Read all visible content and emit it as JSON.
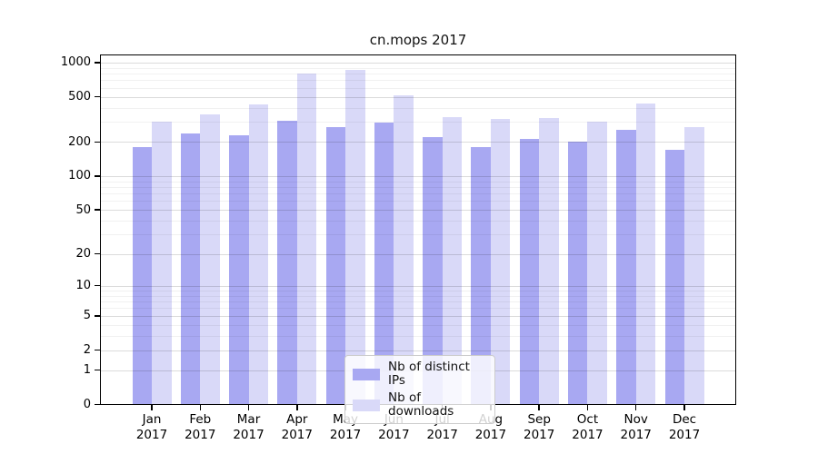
{
  "chart_data": {
    "type": "bar",
    "title": "cn.mops 2017",
    "y_scale": "log10(1+y)",
    "ylim": [
      0,
      1000
    ],
    "grid": "horizontal, minor log decades, drawn over bars",
    "legend_position": "bottom-center",
    "y_ticks": [
      0,
      1,
      2,
      5,
      10,
      20,
      50,
      100,
      200,
      500,
      1000
    ],
    "categories": [
      "Jan",
      "Feb",
      "Mar",
      "Apr",
      "May",
      "Jun",
      "Jul",
      "Aug",
      "Sep",
      "Oct",
      "Nov",
      "Dec"
    ],
    "x_year_line": "2017",
    "series": [
      {
        "name": "Nb of distinct IPs",
        "color": "#a8a8f2",
        "values": [
          180,
          240,
          230,
          310,
          270,
          295,
          220,
          180,
          215,
          200,
          255,
          170
        ]
      },
      {
        "name": "Nb of downloads",
        "color": "#d9d9f8",
        "values": [
          300,
          350,
          430,
          800,
          860,
          520,
          330,
          320,
          325,
          300,
          435,
          270
        ]
      }
    ],
    "colors": {
      "frame": "#000000",
      "grid_minor": "rgba(0,0,0,0.055)",
      "grid_major": "rgba(0,0,0,0.14)",
      "background": "#ffffff"
    }
  }
}
